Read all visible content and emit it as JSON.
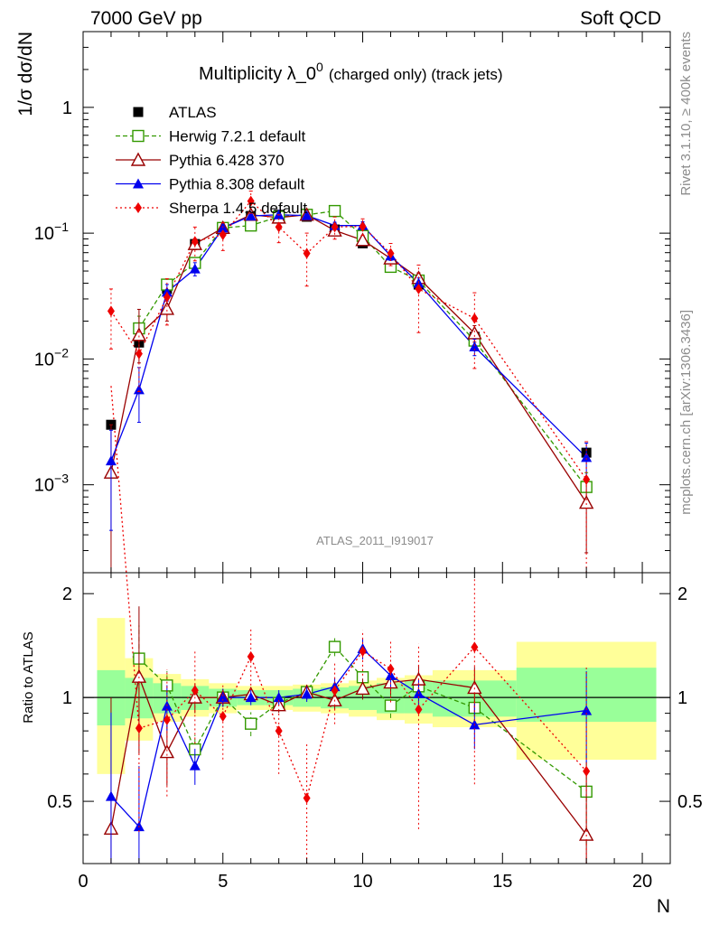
{
  "header": {
    "left": "7000 GeV pp",
    "right": "Soft QCD",
    "side_top": "Rivet 3.1.10, ≥ 400k events",
    "side_bottom": "mcplots.cern.ch [arXiv:1306.3436]",
    "analysis_id": "ATLAS_2011_I919017"
  },
  "chart_data": {
    "type": "scatter",
    "title_main": "Multiplicity λ_0",
    "title_sup": "0",
    "title_suffix": "(charged only) (track jets)",
    "ylabel": "1/σ dσ/dN",
    "xlabel": "N",
    "ratio_ylabel": "Ratio to ATLAS",
    "xlim": [
      0,
      21
    ],
    "ylim_log": [
      0.0002,
      4
    ],
    "ratio_ylim": [
      0.33,
      2.3
    ],
    "x_ticks": [
      0,
      5,
      10,
      15,
      20
    ],
    "x_tick_labels": [
      "0",
      "5",
      "10",
      "15",
      "20"
    ],
    "y_ticks": [
      0.001,
      0.01,
      0.1,
      1
    ],
    "y_tick_labels": [
      {
        "base": "10",
        "exp": "−3"
      },
      {
        "base": "10",
        "exp": "−2"
      },
      {
        "base": "10",
        "exp": "−1"
      },
      {
        "base": "1",
        "exp": ""
      }
    ],
    "ratio_ticks": [
      0.5,
      1,
      2
    ],
    "ratio_tick_labels": [
      "0.5",
      "1",
      "2"
    ],
    "bins": [
      [
        0.5,
        1.5
      ],
      [
        1.5,
        2.5
      ],
      [
        2.5,
        3.5
      ],
      [
        3.5,
        4.5
      ],
      [
        4.5,
        5.5
      ],
      [
        5.5,
        6.5
      ],
      [
        6.5,
        7.5
      ],
      [
        7.5,
        8.5
      ],
      [
        8.5,
        9.5
      ],
      [
        9.5,
        10.5
      ],
      [
        10.5,
        11.5
      ],
      [
        11.5,
        12.5
      ],
      [
        12.5,
        15.5
      ],
      [
        15.5,
        20.5
      ]
    ],
    "band_inner": [
      [
        0.83,
        1.2
      ],
      [
        0.87,
        1.14
      ],
      [
        0.9,
        1.1
      ],
      [
        0.92,
        1.08
      ],
      [
        0.94,
        1.06
      ],
      [
        0.95,
        1.05
      ],
      [
        0.95,
        1.05
      ],
      [
        0.94,
        1.06
      ],
      [
        0.93,
        1.07
      ],
      [
        0.92,
        1.08
      ],
      [
        0.9,
        1.1
      ],
      [
        0.9,
        1.12
      ],
      [
        0.88,
        1.12
      ],
      [
        0.85,
        1.22
      ]
    ],
    "band_outer": [
      [
        0.6,
        1.7
      ],
      [
        0.75,
        1.3
      ],
      [
        0.85,
        1.17
      ],
      [
        0.88,
        1.13
      ],
      [
        0.9,
        1.1
      ],
      [
        0.92,
        1.08
      ],
      [
        0.92,
        1.08
      ],
      [
        0.91,
        1.09
      ],
      [
        0.9,
        1.1
      ],
      [
        0.88,
        1.12
      ],
      [
        0.86,
        1.14
      ],
      [
        0.84,
        1.16
      ],
      [
        0.82,
        1.2
      ],
      [
        0.66,
        1.45
      ]
    ],
    "series": [
      {
        "name": "ATLAS",
        "color": "#000000",
        "marker": "square-filled",
        "dash": "",
        "points": [
          [
            1,
            0.003
          ],
          [
            2,
            0.0135
          ],
          [
            3,
            0.036
          ],
          [
            4,
            0.082
          ],
          [
            5,
            0.11
          ],
          [
            6,
            0.137
          ],
          [
            7,
            0.14
          ],
          [
            8,
            0.135
          ],
          [
            9,
            0.107
          ],
          [
            10,
            0.083
          ],
          [
            11,
            0.057
          ],
          [
            12,
            0.039
          ],
          [
            14,
            0.015
          ],
          [
            18,
            0.0018
          ]
        ],
        "yerr": []
      },
      {
        "name": "Herwig 7.2.1 default",
        "color": "#339900",
        "marker": "square-open",
        "dash": "5,3",
        "points": [
          [
            2,
            0.0175
          ],
          [
            3,
            0.039
          ],
          [
            4,
            0.058
          ],
          [
            5,
            0.11
          ],
          [
            6,
            0.115
          ],
          [
            7,
            0.135
          ],
          [
            8,
            0.14
          ],
          [
            9,
            0.15
          ],
          [
            10,
            0.095
          ],
          [
            11,
            0.054
          ],
          [
            12,
            0.042
          ],
          [
            14,
            0.014
          ],
          [
            18,
            0.00096
          ]
        ],
        "yerr": [
          [
            0.2,
            0.25
          ],
          [
            0.1,
            0.1
          ],
          [
            0.1,
            0.1
          ],
          [
            0.06,
            0.06
          ],
          [
            0.08,
            0.08
          ],
          [
            0.05,
            0.05
          ],
          [
            0.05,
            0.05
          ],
          [
            0.06,
            0.06
          ],
          [
            0.07,
            0.07
          ],
          [
            0.08,
            0.08
          ],
          [
            0.1,
            0.1
          ],
          [
            0.1,
            0.1
          ],
          [
            0.3,
            0.3
          ]
        ]
      },
      {
        "name": "Pythia 6.428 370",
        "color": "#990000",
        "marker": "triangle-open",
        "dash": "",
        "points": [
          [
            1,
            0.00125
          ],
          [
            2,
            0.0155
          ],
          [
            3,
            0.025
          ],
          [
            4,
            0.082
          ],
          [
            5,
            0.11
          ],
          [
            6,
            0.14
          ],
          [
            7,
            0.133
          ],
          [
            8,
            0.14
          ],
          [
            9,
            0.105
          ],
          [
            10,
            0.088
          ],
          [
            11,
            0.063
          ],
          [
            12,
            0.044
          ],
          [
            14,
            0.016
          ],
          [
            18,
            0.00072
          ]
        ],
        "yerr": [
          [
            0.95,
            1.4
          ],
          [
            0.4,
            0.6
          ],
          [
            0.2,
            0.2
          ],
          [
            0.1,
            0.1
          ],
          [
            0.06,
            0.06
          ],
          [
            0.05,
            0.05
          ],
          [
            0.05,
            0.05
          ],
          [
            0.05,
            0.05
          ],
          [
            0.06,
            0.06
          ],
          [
            0.07,
            0.07
          ],
          [
            0.08,
            0.08
          ],
          [
            0.1,
            0.1
          ],
          [
            0.15,
            0.15
          ],
          [
            0.6,
            0.6
          ]
        ]
      },
      {
        "name": "Pythia 8.308 default",
        "color": "#0000ee",
        "marker": "triangle-filled",
        "dash": "",
        "points": [
          [
            1,
            0.00155
          ],
          [
            2,
            0.0057
          ],
          [
            3,
            0.034
          ],
          [
            4,
            0.052
          ],
          [
            5,
            0.11
          ],
          [
            6,
            0.137
          ],
          [
            7,
            0.14
          ],
          [
            8,
            0.138
          ],
          [
            9,
            0.115
          ],
          [
            10,
            0.115
          ],
          [
            11,
            0.066
          ],
          [
            12,
            0.04
          ],
          [
            14,
            0.0125
          ],
          [
            18,
            0.00165
          ]
        ],
        "yerr": [
          [
            0.72,
            0.75
          ],
          [
            0.45,
            0.5
          ],
          [
            0.15,
            0.15
          ],
          [
            0.12,
            0.12
          ],
          [
            0.06,
            0.06
          ],
          [
            0.05,
            0.05
          ],
          [
            0.05,
            0.05
          ],
          [
            0.05,
            0.05
          ],
          [
            0.06,
            0.06
          ],
          [
            0.07,
            0.07
          ],
          [
            0.08,
            0.08
          ],
          [
            0.1,
            0.1
          ],
          [
            0.15,
            0.15
          ],
          [
            0.3,
            0.3
          ]
        ]
      },
      {
        "name": "Sherpa 1.4.5 default",
        "color": "#ee0000",
        "marker": "diamond-filled",
        "dash": "2,3",
        "points": [
          [
            1,
            0.024
          ],
          [
            2,
            0.011
          ],
          [
            3,
            0.031
          ],
          [
            4,
            0.086
          ],
          [
            5,
            0.097
          ],
          [
            6,
            0.18
          ],
          [
            7,
            0.112
          ],
          [
            8,
            0.069
          ],
          [
            9,
            0.112
          ],
          [
            10,
            0.113
          ],
          [
            11,
            0.069
          ],
          [
            12,
            0.036
          ],
          [
            14,
            0.021
          ],
          [
            18,
            0.0011
          ]
        ],
        "yerr": [
          [
            0.5,
            0.5
          ],
          [
            0.5,
            0.5
          ],
          [
            0.4,
            0.4
          ],
          [
            0.3,
            0.3
          ],
          [
            0.25,
            0.25
          ],
          [
            0.2,
            0.2
          ],
          [
            0.25,
            0.25
          ],
          [
            0.45,
            0.45
          ],
          [
            0.2,
            0.2
          ],
          [
            0.15,
            0.15
          ],
          [
            0.2,
            0.2
          ],
          [
            0.55,
            0.55
          ],
          [
            0.6,
            0.6
          ],
          [
            1.0,
            1.0
          ]
        ]
      }
    ]
  }
}
